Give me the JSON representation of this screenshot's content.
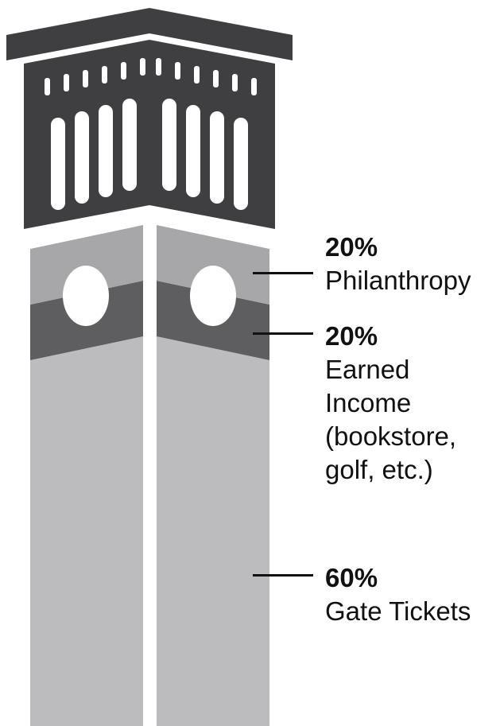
{
  "chart_data": {
    "type": "stacked-bar",
    "title": "",
    "segments": [
      {
        "percent_label": "20%",
        "value": 20,
        "label": "Philanthropy",
        "color": "#a7a7a9"
      },
      {
        "percent_label": "20%",
        "value": 20,
        "label": "Earned\nIncome\n(bookstore,\ngolf, etc.)",
        "color": "#5e5e60"
      },
      {
        "percent_label": "60%",
        "value": 60,
        "label": "Gate Tickets",
        "color": "#bcbcbe"
      }
    ]
  },
  "colors": {
    "capital": "#3f3f41",
    "page": "#ffffff",
    "text": "#111111"
  }
}
